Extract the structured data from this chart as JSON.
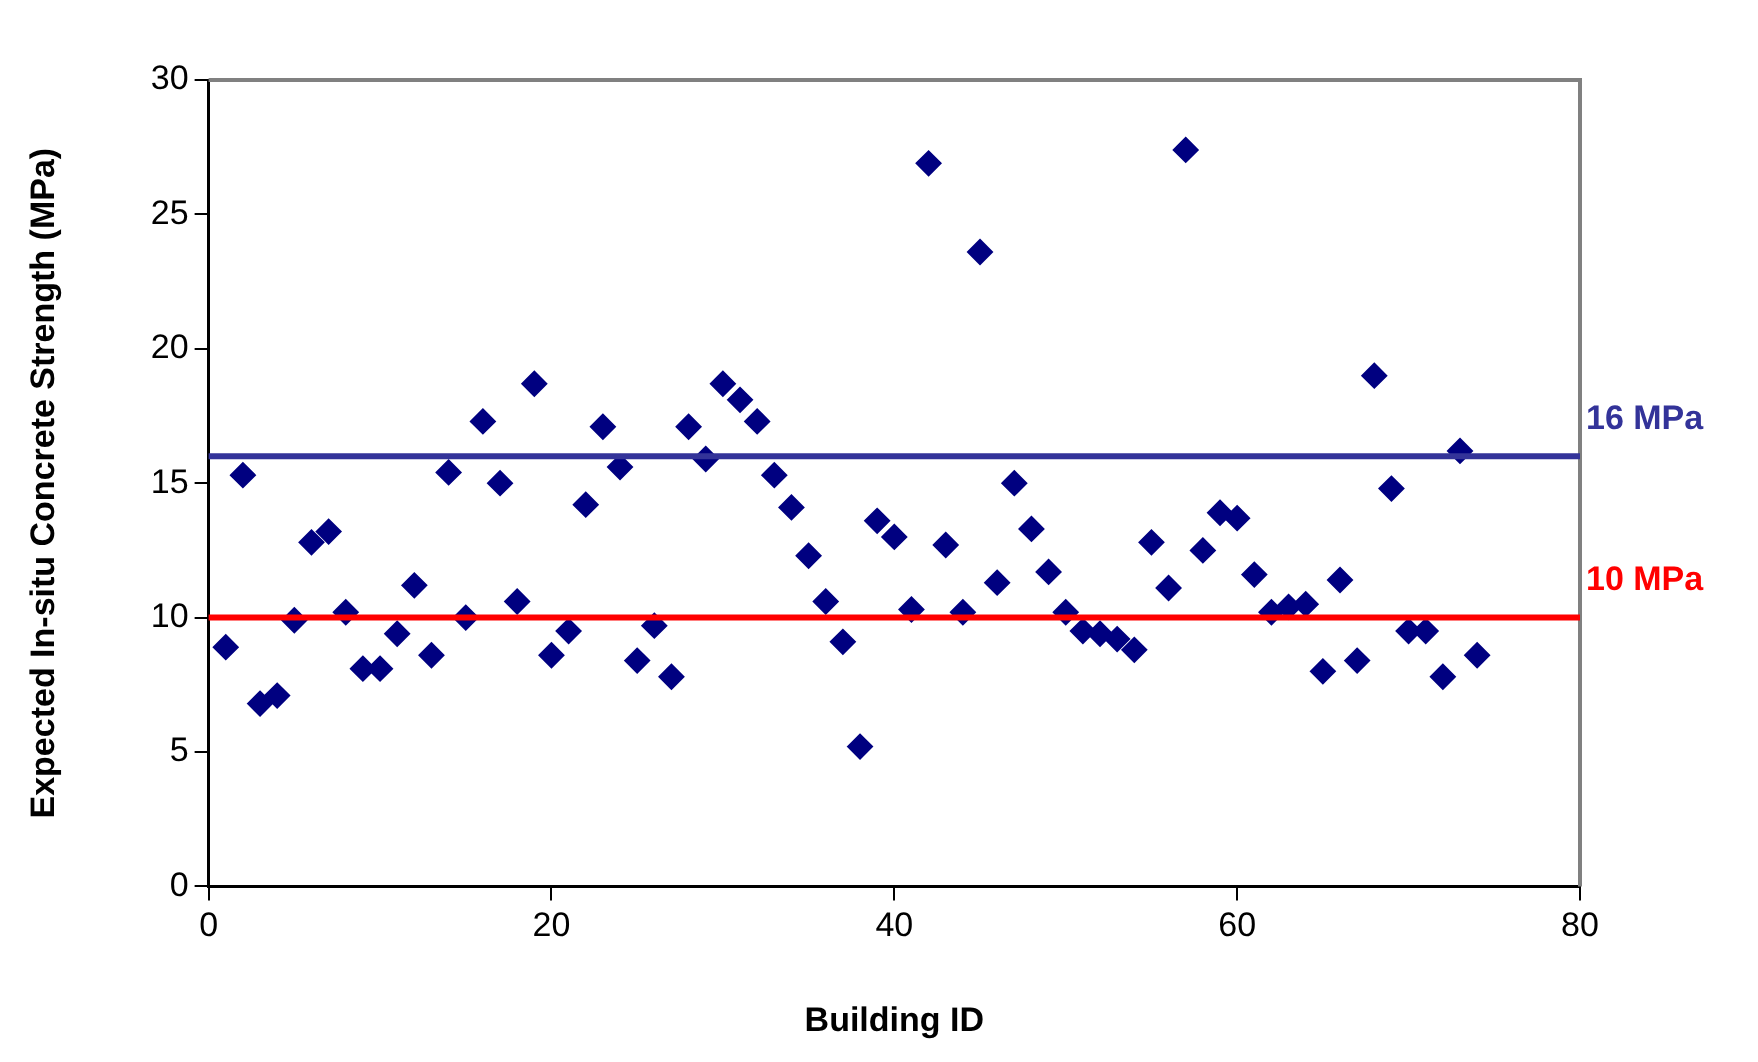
{
  "chart_data": {
    "type": "scatter",
    "xlabel": "Building ID",
    "ylabel": "Expected In-situ Concrete Strength (MPa)",
    "x": [
      1,
      2,
      3,
      4,
      5,
      6,
      7,
      8,
      9,
      10,
      11,
      12,
      13,
      14,
      15,
      16,
      17,
      18,
      19,
      20,
      21,
      22,
      23,
      24,
      25,
      26,
      27,
      28,
      29,
      30,
      31,
      32,
      33,
      34,
      35,
      36,
      37,
      38,
      39,
      40,
      41,
      42,
      43,
      44,
      45,
      46,
      47,
      48,
      49,
      50,
      51,
      52,
      53,
      54,
      55,
      56,
      57,
      58,
      59,
      60,
      61,
      62,
      63,
      64,
      65,
      66,
      67,
      68,
      69,
      70,
      71,
      72,
      73,
      74
    ],
    "series": [
      {
        "color": "#000080",
        "values": [
          8.9,
          15.3,
          6.8,
          7.1,
          9.9,
          12.8,
          13.2,
          10.2,
          8.1,
          8.1,
          9.4,
          11.2,
          8.6,
          15.4,
          10.0,
          17.3,
          15.0,
          10.6,
          18.7,
          8.6,
          9.5,
          14.2,
          17.1,
          15.6,
          8.4,
          9.7,
          7.8,
          17.1,
          15.9,
          18.7,
          18.1,
          17.3,
          15.3,
          14.1,
          12.3,
          10.6,
          9.1,
          5.2,
          13.6,
          13.0,
          10.3,
          26.9,
          12.7,
          10.2,
          23.6,
          11.3,
          15.0,
          13.3,
          11.7,
          10.2,
          9.5,
          9.4,
          9.2,
          8.8,
          12.8,
          11.1,
          27.4,
          12.5,
          13.9,
          13.7,
          11.6,
          10.2,
          10.4,
          10.5,
          8.0,
          11.4,
          8.4,
          19.0,
          14.8,
          9.5,
          9.5,
          7.8,
          16.2,
          8.6
        ]
      }
    ],
    "xlim": [
      0,
      80
    ],
    "xticks": [
      0,
      20,
      40,
      60,
      80
    ],
    "ylim": [
      0,
      30
    ],
    "yticks": [
      0,
      5,
      10,
      15,
      20,
      25,
      30
    ],
    "grid": false,
    "legend": false,
    "marker": "diamond",
    "ref_lines": [
      {
        "axis": "y",
        "value": 16,
        "label": "16 MPa",
        "color": "#333399"
      },
      {
        "axis": "y",
        "value": 10,
        "label": "10 MPa",
        "color": "#ff0000"
      }
    ]
  }
}
